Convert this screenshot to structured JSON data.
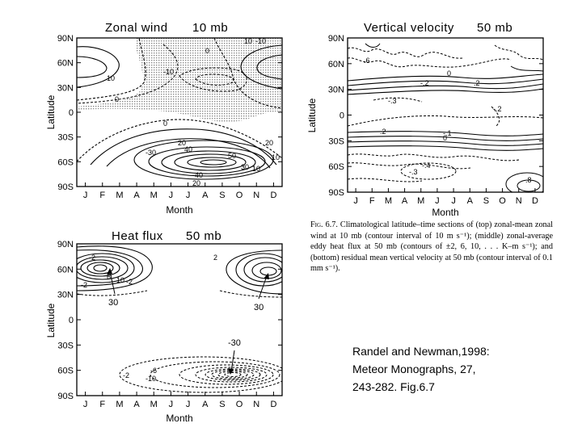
{
  "chart_data": [
    {
      "type": "contour",
      "title": "Zonal wind",
      "level": "10 mb",
      "xlabel": "Month",
      "ylabel": "Latitude",
      "x_ticks": [
        "J",
        "F",
        "M",
        "A",
        "M",
        "J",
        "J",
        "A",
        "S",
        "O",
        "N",
        "D"
      ],
      "y_ticks": [
        "90N",
        "60N",
        "30N",
        "0",
        "30S",
        "60S",
        "90S"
      ],
      "contour_interval": "10 m s-1",
      "shading": "easterlies (negative values) stippled",
      "contour_labels": [
        "10",
        "-10",
        "10",
        "-10",
        "0",
        "0",
        "0",
        "-30",
        "-40",
        "20",
        "40",
        "50",
        "30",
        "10",
        "20",
        "20",
        "10"
      ]
    },
    {
      "type": "contour",
      "title": "Vertical velocity",
      "level": "50 mb",
      "xlabel": "Month",
      "ylabel": "Latitude",
      "x_ticks": [
        "J",
        "F",
        "M",
        "A",
        "M",
        "J",
        "J",
        "A",
        "S",
        "O",
        "N",
        "D"
      ],
      "y_ticks": [
        "90N",
        "60N",
        "30N",
        "0",
        "30S",
        "60S",
        "90S"
      ],
      "contour_interval": "0.1 mm s-1",
      "contour_labels": [
        ".6",
        "0",
        "-.2",
        ".2",
        "-.3",
        ".2",
        "-.2",
        "-.1",
        "0",
        "-.4",
        "-.3",
        ".8"
      ]
    },
    {
      "type": "contour",
      "title": "Heat flux",
      "level": "50 mb",
      "xlabel": "Month",
      "ylabel": "Latitude",
      "x_ticks": [
        "J",
        "F",
        "M",
        "A",
        "M",
        "J",
        "J",
        "A",
        "S",
        "O",
        "N",
        "D"
      ],
      "y_ticks": [
        "90N",
        "60N",
        "30N",
        "0",
        "30S",
        "60S",
        "90S"
      ],
      "contour_labels": [
        "-2",
        "-2",
        "6",
        "10",
        "-2",
        "2",
        "-2",
        "-6",
        "-10",
        "-30"
      ],
      "annotations": [
        "30",
        "30",
        "-30"
      ]
    }
  ],
  "caption": {
    "lead": "Fig. 6.7.",
    "text": "Climatological latitude–time sections of (top) zonal-mean zonal wind at 10 mb (contour interval of 10 m s⁻¹); (middle) zonal-average eddy heat flux at 50 mb (contours of ±2, 6, 10, . . . K–m s⁻¹); and (bottom) residual mean vertical velocity at 50 mb (contour interval of 0.1 mm s⁻¹)."
  },
  "reference": {
    "line1": "Randel and Newman,1998:",
    "line2": "Meteor Monographs, 27,",
    "line3": "243-282. Fig.6.7"
  },
  "colors": {
    "ink": "#000000",
    "stipple": "#9a9a9a",
    "background": "#ffffff"
  }
}
